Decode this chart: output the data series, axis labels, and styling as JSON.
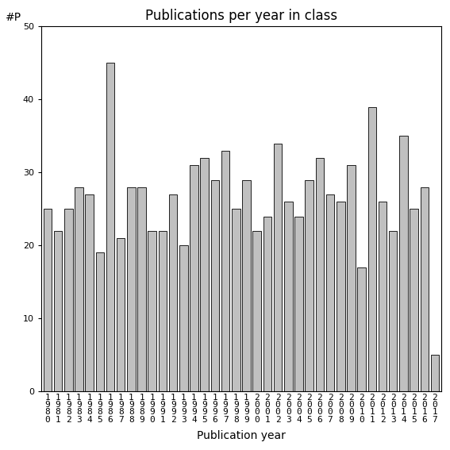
{
  "title": "Publications per year in class",
  "xlabel": "Publication year",
  "ylabel": "#P",
  "categories": [
    "1980",
    "1981",
    "1982",
    "1983",
    "1984",
    "1985",
    "1986",
    "1987",
    "1988",
    "1989",
    "1990",
    "1991",
    "1992",
    "1993",
    "1994",
    "1995",
    "1996",
    "1997",
    "1998",
    "1999",
    "2000",
    "2001",
    "2002",
    "2003",
    "2004",
    "2005",
    "2006",
    "2007",
    "2008",
    "2009",
    "2010",
    "2011",
    "2012",
    "2013",
    "2014",
    "2015",
    "2016",
    "2017"
  ],
  "values": [
    25,
    22,
    25,
    28,
    27,
    19,
    45,
    21,
    28,
    28,
    22,
    22,
    27,
    20,
    31,
    32,
    29,
    33,
    25,
    29,
    22,
    24,
    34,
    26,
    24,
    29,
    32,
    27,
    26,
    31,
    17,
    39,
    26,
    22,
    35,
    25,
    28,
    5
  ],
  "bar_color": "#c0c0c0",
  "bar_edge_color": "#000000",
  "background_color": "#ffffff",
  "ylim": [
    0,
    50
  ],
  "yticks": [
    0,
    10,
    20,
    30,
    40,
    50
  ],
  "title_fontsize": 12,
  "axis_label_fontsize": 10,
  "tick_fontsize": 8,
  "bar_width": 0.8
}
